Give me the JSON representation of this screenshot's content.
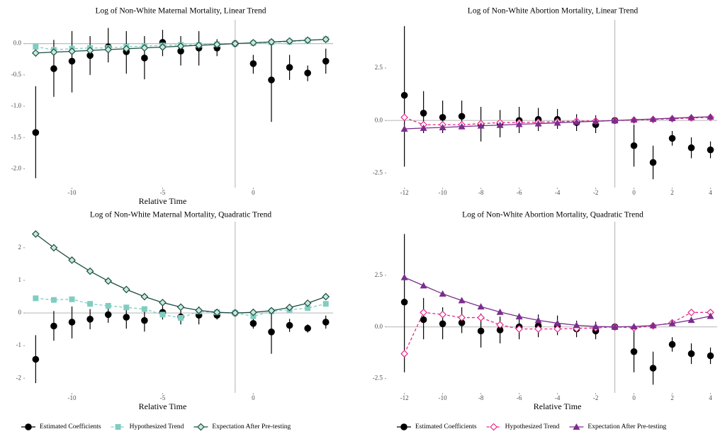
{
  "chart_data": [
    {
      "type": "errorbar",
      "title": "Log of Non-White Maternal Mortality, Linear Trend",
      "xlabel": "Relative Time",
      "x": [
        -12,
        -11,
        -10,
        -9,
        -8,
        -7,
        -6,
        -5,
        -4,
        -3,
        -2,
        -1,
        0,
        1,
        2,
        3,
        4
      ],
      "xlim": [
        -12.6,
        4.4
      ],
      "xticks": [
        -10,
        -5,
        0
      ],
      "ylim": [
        -2.3,
        0.38
      ],
      "yticks": [
        {
          "value": 0,
          "label": "0.0"
        },
        -0.5,
        {
          "value": -1,
          "label": "-1.0"
        },
        -1.5,
        {
          "value": -2,
          "label": "-2.0"
        }
      ],
      "reference_lines": {
        "x": -1,
        "y": 0
      },
      "series": [
        {
          "name": "Estimated Coefficients",
          "color": "#000000",
          "marker": "circle",
          "line": "none",
          "values": [
            -1.42,
            -0.4,
            -0.28,
            -0.19,
            -0.05,
            -0.13,
            -0.23,
            0.02,
            -0.12,
            -0.07,
            -0.07,
            0,
            -0.32,
            -0.58,
            -0.38,
            -0.47,
            -0.28
          ],
          "lower": [
            -2.15,
            -0.85,
            -0.78,
            -0.5,
            -0.3,
            -0.48,
            -0.57,
            -0.2,
            -0.35,
            -0.35,
            -0.2,
            null,
            -0.48,
            -1.25,
            -0.58,
            -0.6,
            -0.48
          ],
          "upper": [
            -0.68,
            0.06,
            0.2,
            0.12,
            0.25,
            0.2,
            0.12,
            0.22,
            0.12,
            0.2,
            0.07,
            null,
            -0.18,
            0.03,
            -0.18,
            -0.35,
            -0.08
          ]
        },
        {
          "name": "Hypothesized Trend",
          "color": "#80cdc1",
          "marker": "square",
          "line": "dashed",
          "values": [
            -0.05,
            -0.1,
            -0.08,
            -0.07,
            -0.07,
            -0.05,
            -0.04,
            -0.03,
            -0.02,
            -0.02,
            -0.01,
            0,
            0.01,
            0.02,
            0.03,
            0.05,
            0.07
          ]
        },
        {
          "name": "Expectation After Pre-testing",
          "color": "#1b4d3e",
          "marker": "diamond",
          "line": "solid",
          "values": [
            -0.15,
            -0.136,
            -0.123,
            -0.109,
            -0.095,
            -0.082,
            -0.068,
            -0.055,
            -0.041,
            -0.027,
            -0.014,
            0,
            0.014,
            0.027,
            0.041,
            0.055,
            0.068
          ]
        }
      ]
    },
    {
      "type": "errorbar",
      "title": "Log of Non-White Abortion Mortality, Linear Trend",
      "x": [
        -12,
        -11,
        -10,
        -9,
        -8,
        -7,
        -6,
        -5,
        -4,
        -3,
        -2,
        -1,
        0,
        1,
        2,
        3,
        4
      ],
      "xlim": [
        -12.95,
        4.35
      ],
      "xticks": [
        -12,
        -10,
        -8,
        -6,
        -4,
        -2,
        0,
        2,
        4
      ],
      "ylim": [
        -3.2,
        4.8
      ],
      "yticks": [
        -2.5,
        {
          "value": 0,
          "label": "0.0"
        },
        2.5
      ],
      "reference_lines": {
        "x": -1,
        "y": 0
      },
      "series": [
        {
          "name": "Estimated Coefficients",
          "color": "#000000",
          "marker": "circle",
          "line": "none",
          "values": [
            1.2,
            0.35,
            0.15,
            0.2,
            -0.2,
            -0.15,
            0.0,
            0.05,
            0.05,
            -0.1,
            -0.2,
            0,
            -1.2,
            -2.0,
            -0.85,
            -1.3,
            -1.4
          ],
          "lower": [
            -2.2,
            -0.6,
            -0.6,
            -0.3,
            -1.0,
            -0.8,
            -0.6,
            -0.5,
            -0.4,
            -0.5,
            -0.6,
            null,
            -2.2,
            -2.8,
            -1.2,
            -1.8,
            -1.8
          ],
          "upper": [
            4.5,
            1.4,
            0.95,
            0.95,
            0.65,
            0.5,
            0.65,
            0.6,
            0.55,
            0.3,
            0.25,
            null,
            -0.2,
            -1.2,
            -0.5,
            -0.8,
            -1.0
          ]
        },
        {
          "name": "Hypothesized Trend",
          "color": "#e7298a",
          "marker": "diamond-open",
          "line": "dashed",
          "values": [
            0.15,
            -0.2,
            -0.2,
            -0.2,
            -0.15,
            -0.1,
            -0.1,
            -0.08,
            -0.05,
            -0.03,
            -0.02,
            0,
            0.02,
            0.05,
            0.08,
            0.12,
            0.15
          ]
        },
        {
          "name": "Expectation After Pre-testing",
          "color": "#7b2d8e",
          "marker": "triangle",
          "line": "solid",
          "values": [
            -0.4,
            -0.36,
            -0.33,
            -0.29,
            -0.25,
            -0.22,
            -0.18,
            -0.15,
            -0.11,
            -0.07,
            -0.04,
            0,
            0.04,
            0.07,
            0.11,
            0.15,
            0.18
          ]
        }
      ]
    },
    {
      "type": "errorbar",
      "title": "Log of Non-White Maternal Mortality, Quadratic Trend",
      "xlabel": "Relative Time",
      "x": [
        -12,
        -11,
        -10,
        -9,
        -8,
        -7,
        -6,
        -5,
        -4,
        -3,
        -2,
        -1,
        0,
        1,
        2,
        3,
        4
      ],
      "xlim": [
        -12.6,
        4.4
      ],
      "xticks": [
        -10,
        -5,
        0
      ],
      "ylim": [
        -2.45,
        2.8
      ],
      "yticks": [
        -2,
        -1,
        0,
        1,
        2
      ],
      "reference_lines": {
        "x": -1,
        "y": 0
      },
      "series": [
        {
          "color": "#000000",
          "marker": "circle",
          "line": "none",
          "values": [
            -1.42,
            -0.4,
            -0.28,
            -0.19,
            -0.05,
            -0.13,
            -0.23,
            0.02,
            -0.12,
            -0.07,
            -0.07,
            0,
            -0.32,
            -0.58,
            -0.38,
            -0.47,
            -0.28
          ],
          "lower": [
            -2.15,
            -0.85,
            -0.78,
            -0.5,
            -0.3,
            -0.48,
            -0.57,
            -0.2,
            -0.35,
            -0.35,
            -0.2,
            null,
            -0.48,
            -1.25,
            -0.58,
            -0.6,
            -0.48
          ],
          "upper": [
            -0.68,
            0.06,
            0.2,
            0.12,
            0.25,
            0.2,
            0.12,
            0.22,
            0.12,
            0.2,
            0.07,
            null,
            -0.18,
            0.03,
            -0.18,
            -0.35,
            -0.08
          ]
        },
        {
          "color": "#80cdc1",
          "marker": "square",
          "line": "dashed",
          "values": [
            0.45,
            0.4,
            0.42,
            0.28,
            0.22,
            0.17,
            0.12,
            -0.05,
            -0.15,
            0.05,
            0.02,
            0,
            -0.1,
            0.05,
            0.1,
            0.15,
            0.28
          ]
        },
        {
          "color": "#1b4d3e",
          "marker": "diamond",
          "line": "solid",
          "values": [
            2.42,
            2.0,
            1.62,
            1.28,
            0.98,
            0.72,
            0.5,
            0.32,
            0.18,
            0.08,
            0.02,
            0,
            0.02,
            0.07,
            0.17,
            0.3,
            0.5
          ]
        }
      ]
    },
    {
      "type": "errorbar",
      "title": "Log of Non-White Abortion Mortality, Quadratic Trend",
      "xlabel": "Relative Time",
      "x": [
        -12,
        -11,
        -10,
        -9,
        -8,
        -7,
        -6,
        -5,
        -4,
        -3,
        -2,
        -1,
        0,
        1,
        2,
        3,
        4
      ],
      "xlim": [
        -12.95,
        4.35
      ],
      "xticks": [
        -12,
        -10,
        -8,
        -6,
        -4,
        -2,
        0,
        2,
        4
      ],
      "ylim": [
        -3.2,
        5.1
      ],
      "yticks": [
        -2.5,
        {
          "value": 0,
          "label": "0.0"
        },
        2.5
      ],
      "reference_lines": {
        "x": -1,
        "y": 0
      },
      "series": [
        {
          "color": "#000000",
          "marker": "circle",
          "line": "none",
          "values": [
            1.2,
            0.35,
            0.15,
            0.2,
            -0.2,
            -0.15,
            0.0,
            0.05,
            0.05,
            -0.1,
            -0.2,
            0,
            -1.2,
            -2.0,
            -0.85,
            -1.3,
            -1.4
          ],
          "lower": [
            -2.2,
            -0.6,
            -0.6,
            -0.3,
            -1.0,
            -0.8,
            -0.6,
            -0.5,
            -0.4,
            -0.5,
            -0.6,
            null,
            -2.2,
            -2.8,
            -1.2,
            -1.8,
            -1.8
          ],
          "upper": [
            4.5,
            1.4,
            0.95,
            0.95,
            0.65,
            0.5,
            0.65,
            0.6,
            0.55,
            0.3,
            0.25,
            null,
            -0.2,
            -1.2,
            -0.5,
            -0.8,
            -1.0
          ]
        },
        {
          "color": "#e7298a",
          "marker": "diamond-open",
          "line": "dashed",
          "values": [
            -1.3,
            0.7,
            0.6,
            0.45,
            0.45,
            0.1,
            -0.1,
            -0.1,
            -0.1,
            -0.08,
            -0.05,
            0,
            -0.05,
            0.05,
            0.2,
            0.7,
            0.7
          ]
        },
        {
          "color": "#7b2d8e",
          "marker": "triangle",
          "line": "solid",
          "values": [
            2.4,
            2.0,
            1.6,
            1.28,
            0.98,
            0.72,
            0.5,
            0.32,
            0.18,
            0.08,
            0.02,
            0,
            0.02,
            0.07,
            0.17,
            0.33,
            0.52
          ]
        }
      ]
    }
  ]
}
